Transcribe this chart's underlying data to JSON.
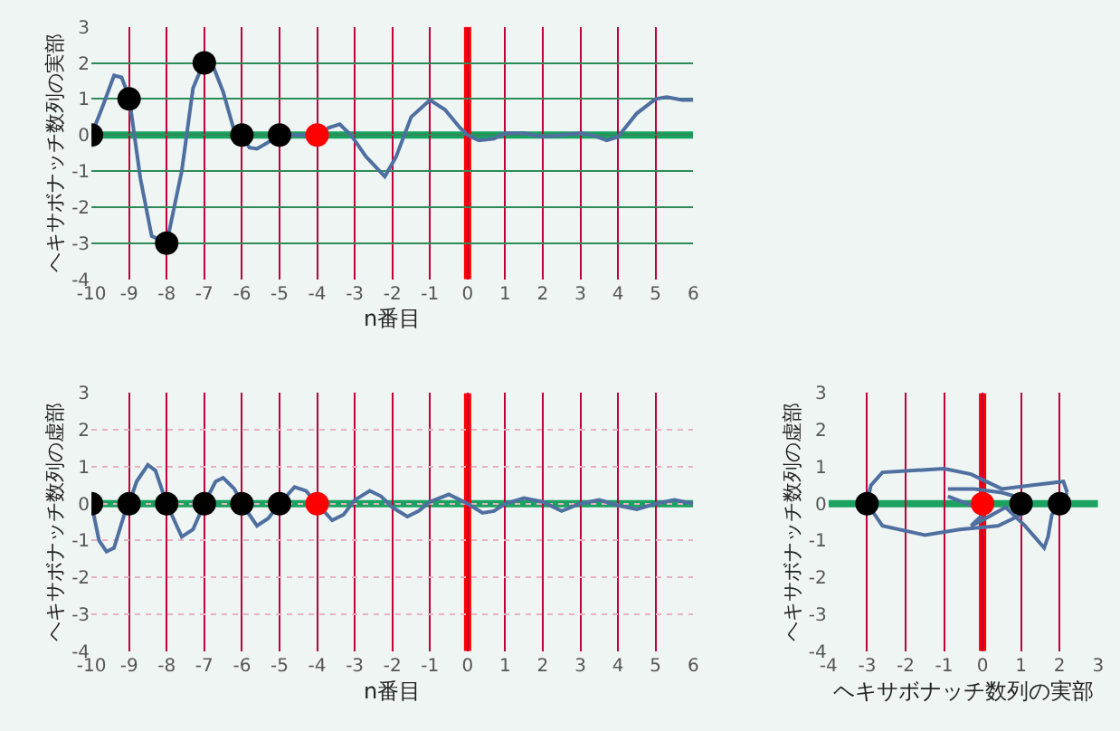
{
  "chart_data": [
    {
      "type": "line",
      "xlabel": "n番目",
      "ylabel": "ヘキサボナッチ数列の実部",
      "xlim": [
        -10,
        6
      ],
      "ylim": [
        -4,
        3
      ],
      "xticks": [
        -10,
        -9,
        -8,
        -7,
        -6,
        -5,
        -4,
        -3,
        -2,
        -1,
        0,
        1,
        2,
        3,
        4,
        5,
        6
      ],
      "yticks": [
        -4,
        -3,
        -2,
        -1,
        0,
        1,
        2,
        3
      ],
      "grid": true,
      "series": [
        {
          "type": "line",
          "color": "#4f6fa0",
          "marker": "none",
          "x": [
            -10,
            -9.7,
            -9.4,
            -9.2,
            -9,
            -8.7,
            -8.4,
            -8,
            -7.6,
            -7.3,
            -7,
            -6.8,
            -6.5,
            -6.2,
            -6,
            -5.8,
            -5.6,
            -5.3,
            -5,
            -4.5,
            -4,
            -3.7,
            -3.4,
            -3.1,
            -2.7,
            -2.2,
            -1.9,
            -1.5,
            -1,
            -0.6,
            -0.2,
            0,
            0.3,
            0.7,
            1,
            1.5,
            2,
            2.5,
            3,
            3.3,
            3.7,
            4,
            4.5,
            5,
            5.3,
            5.7,
            6
          ],
          "values": [
            0,
            0.8,
            1.65,
            1.6,
            1.05,
            -1.2,
            -2.8,
            -3,
            -1,
            1.3,
            2.05,
            2,
            1.2,
            0.1,
            0,
            -0.35,
            -0.38,
            -0.2,
            0,
            0,
            0,
            0.2,
            0.3,
            0,
            -0.6,
            -1.15,
            -0.6,
            0.5,
            0.97,
            0.7,
            0.2,
            0,
            -0.15,
            -0.1,
            0.05,
            0.05,
            -0.05,
            0,
            0.05,
            0,
            -0.15,
            -0.05,
            0.6,
            1,
            1.05,
            0.97,
            0.97
          ]
        },
        {
          "type": "scatter",
          "color": "#000000",
          "marker": "circle",
          "x": [
            -10,
            -9,
            -8,
            -7,
            -6,
            -5
          ],
          "values": [
            0,
            1,
            -3,
            2,
            0,
            0
          ]
        },
        {
          "type": "scatter",
          "color": "#ff0000",
          "marker": "circle",
          "x": [
            -4
          ],
          "values": [
            0
          ]
        }
      ],
      "ref_lines": [
        {
          "axis": "y",
          "value": 0,
          "color": "#1aa260"
        },
        {
          "axis": "x",
          "value": 0,
          "color": "#ff0000"
        }
      ]
    },
    {
      "type": "line",
      "xlabel": "n番目",
      "ylabel": "ヘキサボナッチ数列の虚部",
      "xlim": [
        -10,
        6
      ],
      "ylim": [
        -4,
        3
      ],
      "xticks": [
        -10,
        -9,
        -8,
        -7,
        -6,
        -5,
        -4,
        -3,
        -2,
        -1,
        0,
        1,
        2,
        3,
        4,
        5,
        6
      ],
      "yticks": [
        -4,
        -3,
        -2,
        -1,
        0,
        1,
        2,
        3
      ],
      "grid": true,
      "series": [
        {
          "type": "line",
          "color": "#4f6fa0",
          "marker": "none",
          "x": [
            -10,
            -9.8,
            -9.6,
            -9.4,
            -9.1,
            -9,
            -8.8,
            -8.5,
            -8.3,
            -8,
            -7.6,
            -7.3,
            -7,
            -6.7,
            -6.5,
            -6.2,
            -6,
            -5.6,
            -5.3,
            -5,
            -4.6,
            -4.3,
            -4,
            -3.6,
            -3.3,
            -3,
            -2.6,
            -2.3,
            -2,
            -1.6,
            -1.3,
            -1,
            -0.5,
            -0.2,
            0,
            0.4,
            0.7,
            1,
            1.5,
            2,
            2.5,
            3,
            3.5,
            4,
            4.5,
            5,
            5.5,
            6
          ],
          "values": [
            0,
            -1,
            -1.3,
            -1.2,
            -0.2,
            0,
            0.6,
            1.05,
            0.9,
            0,
            -0.9,
            -0.7,
            0,
            0.6,
            0.7,
            0.4,
            0,
            -0.6,
            -0.4,
            0,
            0.45,
            0.35,
            0,
            -0.45,
            -0.3,
            0.1,
            0.35,
            0.2,
            -0.1,
            -0.35,
            -0.2,
            0.05,
            0.25,
            0.1,
            0,
            -0.25,
            -0.2,
            0,
            0.15,
            0.05,
            -0.2,
            0,
            0.1,
            -0.05,
            -0.15,
            0,
            0.1,
            0
          ]
        },
        {
          "type": "scatter",
          "color": "#000000",
          "marker": "circle",
          "x": [
            -10,
            -9,
            -8,
            -7,
            -6,
            -5
          ],
          "values": [
            0,
            0,
            0,
            0,
            0,
            0
          ]
        },
        {
          "type": "scatter",
          "color": "#ff0000",
          "marker": "circle",
          "x": [
            -4
          ],
          "values": [
            0
          ]
        }
      ],
      "ref_lines": [
        {
          "axis": "y",
          "value": 0,
          "color": "#1aa260"
        },
        {
          "axis": "x",
          "value": 0,
          "color": "#ff0000"
        }
      ]
    },
    {
      "type": "line",
      "xlabel": "ヘキサボナッチ数列の実部",
      "ylabel": "ヘキサボナッチ数列の虚部",
      "xlim": [
        -4,
        3
      ],
      "ylim": [
        -4,
        3
      ],
      "xticks": [
        -4,
        -3,
        -2,
        -1,
        0,
        1,
        2,
        3
      ],
      "yticks": [
        -4,
        -3,
        -2,
        -1,
        0,
        1,
        2,
        3
      ],
      "grid": "x",
      "series": [
        {
          "type": "line",
          "color": "#4f6fa0",
          "marker": "none",
          "x": [
            -3,
            -2.9,
            -2.6,
            -1,
            -0.3,
            0.5,
            1.3,
            2.1,
            2.2
          ],
          "values": [
            0,
            0.5,
            0.85,
            0.95,
            0.8,
            0.4,
            0.5,
            0.6,
            0.3
          ]
        },
        {
          "type": "line",
          "color": "#4f6fa0",
          "marker": "none",
          "x": [
            2.2,
            1.8,
            1.7,
            1.6,
            1.1,
            0.6,
            -0.1,
            -0.3
          ],
          "values": [
            0.3,
            -0.3,
            -0.9,
            -1.2,
            -0.6,
            -0.1,
            -0.5,
            -0.6
          ]
        },
        {
          "type": "line",
          "color": "#4f6fa0",
          "marker": "none",
          "x": [
            -0.3,
            0.1
          ],
          "values": [
            -0.6,
            -0.2
          ]
        },
        {
          "type": "line",
          "color": "#4f6fa0",
          "marker": "none",
          "x": [
            0.1,
            -0.9
          ],
          "values": [
            -0.2,
            0.2
          ]
        },
        {
          "type": "line",
          "color": "#4f6fa0",
          "marker": "none",
          "x": [
            -0.9,
            -0.2,
            0.5,
            1.2
          ],
          "values": [
            0.4,
            0.4,
            0.3,
            0.1
          ]
        },
        {
          "type": "line",
          "color": "#4f6fa0",
          "marker": "none",
          "x": [
            1.2,
            1,
            0.4,
            -0.6,
            -1.5,
            -2.6,
            -3
          ],
          "values": [
            0.1,
            -0.3,
            -0.6,
            -0.7,
            -0.85,
            -0.6,
            0
          ]
        },
        {
          "type": "scatter",
          "color": "#000000",
          "marker": "circle",
          "x": [
            -3,
            1,
            2
          ],
          "values": [
            0,
            0,
            0
          ]
        },
        {
          "type": "scatter",
          "color": "#ff0000",
          "marker": "circle",
          "x": [
            0
          ],
          "values": [
            0
          ]
        }
      ],
      "ref_lines": [
        {
          "axis": "y",
          "value": 0,
          "color": "#1aa260"
        },
        {
          "axis": "x",
          "value": 0,
          "color": "#ff0000"
        }
      ]
    }
  ]
}
